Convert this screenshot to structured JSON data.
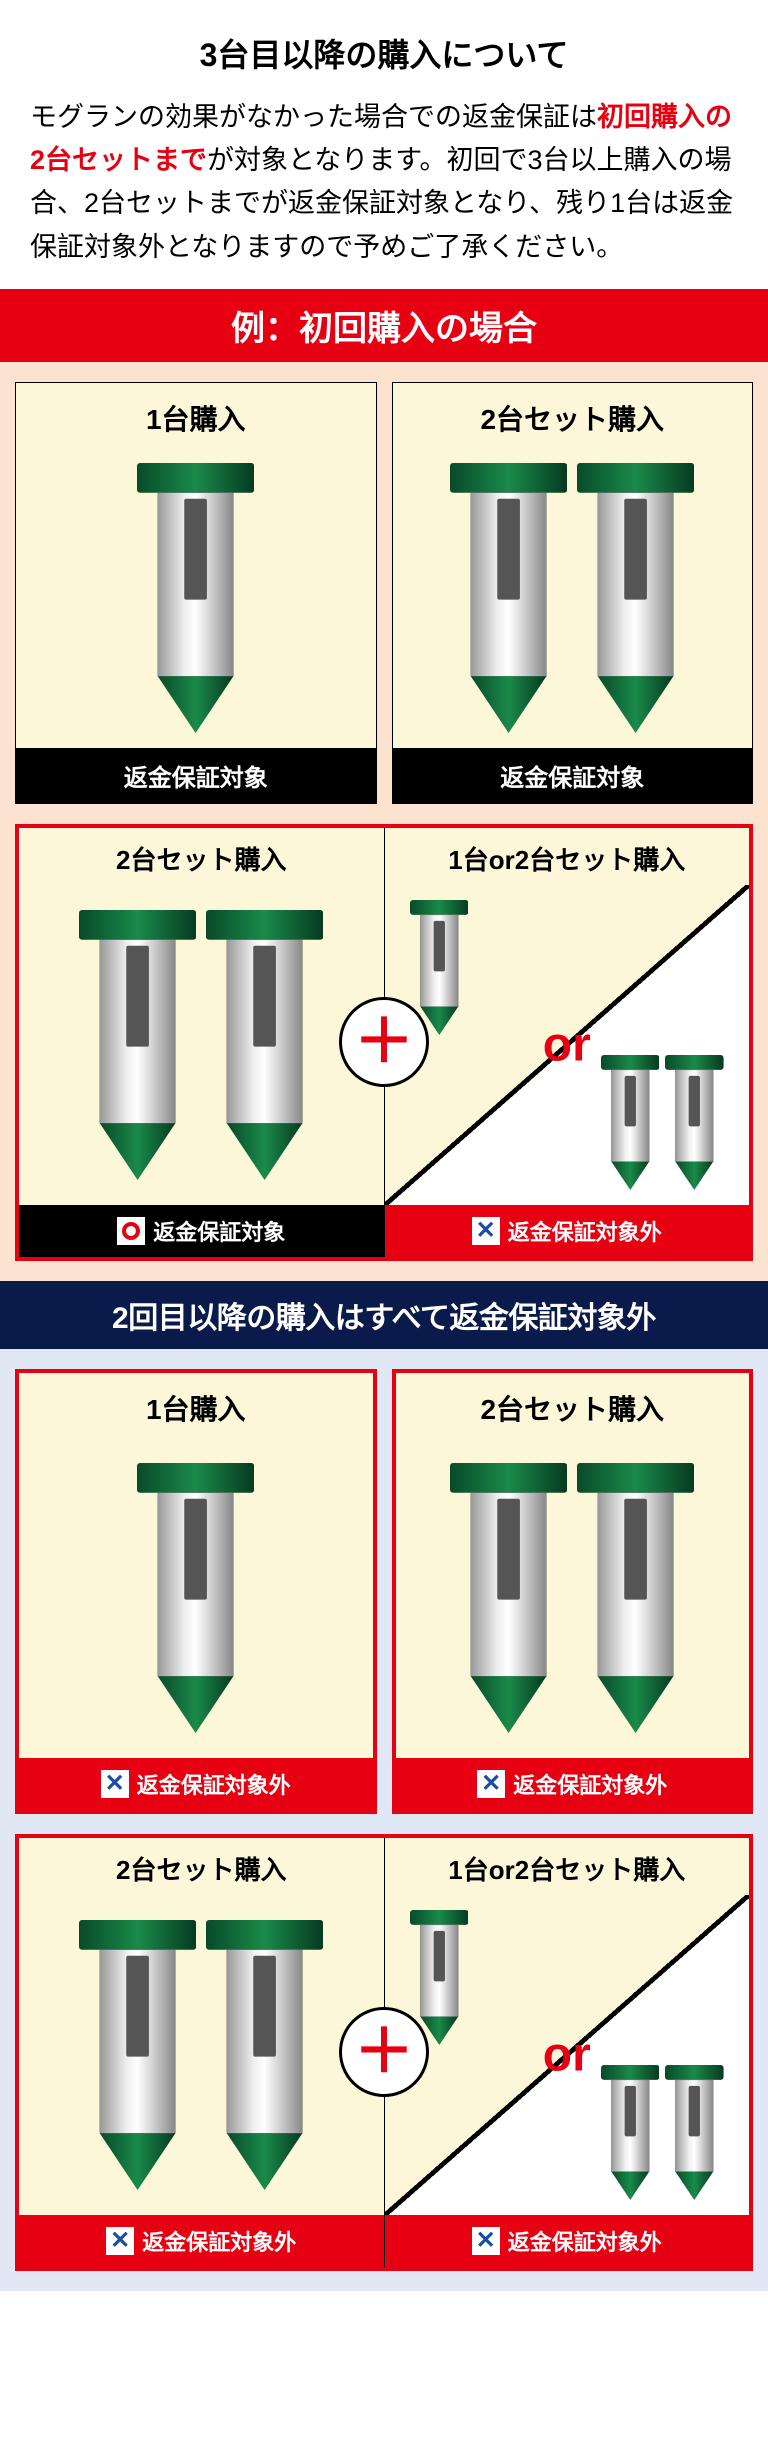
{
  "title": "3台目以降の購入について",
  "intro": {
    "line1": "モグランの効果がなかった場合での返金保証は",
    "highlight": "初回購入の2台セットまで",
    "line1_after": "が対象となります。",
    "rest": "初回で3台以上購入の場合、2台セットまでが返金保証対象となり、残り1台は返金保証対象外となりますので予めご了承ください。"
  },
  "banner1": "例：初回購入の場合",
  "banner2": "2回目以降の購入はすべて返金保証対象外",
  "section1": {
    "bg": "#fbe3d0",
    "row1": {
      "card1": {
        "title": "1台購入",
        "stakes": 1,
        "footer": "返金保証対象",
        "footer_style": "black"
      },
      "card2": {
        "title": "2台セット購入",
        "stakes": 2,
        "footer": "返金保証対象",
        "footer_style": "black"
      }
    },
    "combo": {
      "left": {
        "title": "2台セット購入",
        "stakes": 2,
        "footer": "返金保証対象",
        "footer_style": "black-circle"
      },
      "right": {
        "title": "1台or2台セット購入",
        "footer": "返金保証対象外",
        "footer_style": "red-x"
      }
    }
  },
  "section2": {
    "bg": "#e0e8f5",
    "row1": {
      "card1": {
        "title": "1台購入",
        "stakes": 1,
        "footer": "返金保証対象外",
        "footer_style": "red-x"
      },
      "card2": {
        "title": "2台セット購入",
        "stakes": 2,
        "footer": "返金保証対象外",
        "footer_style": "red-x"
      }
    },
    "combo": {
      "left": {
        "title": "2台セット購入",
        "stakes": 2,
        "footer": "返金保証対象外",
        "footer_style": "red-x"
      },
      "right": {
        "title": "1台or2台セット購入",
        "footer": "返金保証対象外",
        "footer_style": "red-x"
      }
    }
  },
  "or_label": "or",
  "colors": {
    "red": "#e60012",
    "navy": "#0a1a4a",
    "cream": "#fbf7d8",
    "peach": "#fbe3d0",
    "lightblue": "#e0e8f5",
    "stake_green": "#0a6b3a",
    "stake_silver": "#c8c8c8"
  }
}
